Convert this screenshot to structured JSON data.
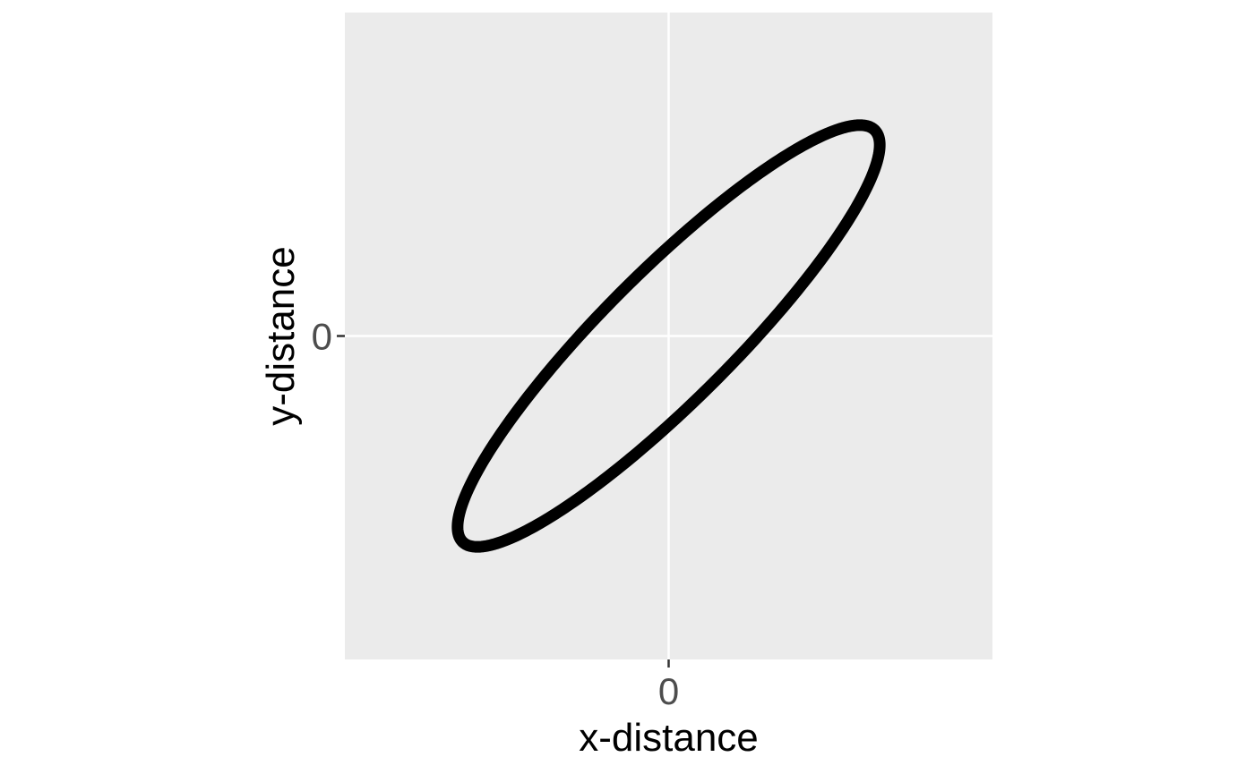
{
  "chart_data": {
    "type": "line",
    "title": "",
    "xlabel": "x-distance",
    "ylabel": "y-distance",
    "xlim": [
      -1,
      1
    ],
    "ylim": [
      -1,
      1
    ],
    "x_ticks": [
      0
    ],
    "y_ticks": [
      0
    ],
    "x_tick_labels": [
      "0"
    ],
    "y_tick_labels": [
      "0"
    ],
    "grid": true,
    "legend": "none",
    "series": [
      {
        "shape": "ellipse",
        "center": [
          0,
          0
        ],
        "semi_major": 0.9,
        "semi_minor": 0.2,
        "angle_deg": 45,
        "color": "#000000"
      }
    ],
    "colors": {
      "panel_background": "#ebebeb",
      "grid_line": "#ffffff",
      "curve": "#000000"
    }
  }
}
